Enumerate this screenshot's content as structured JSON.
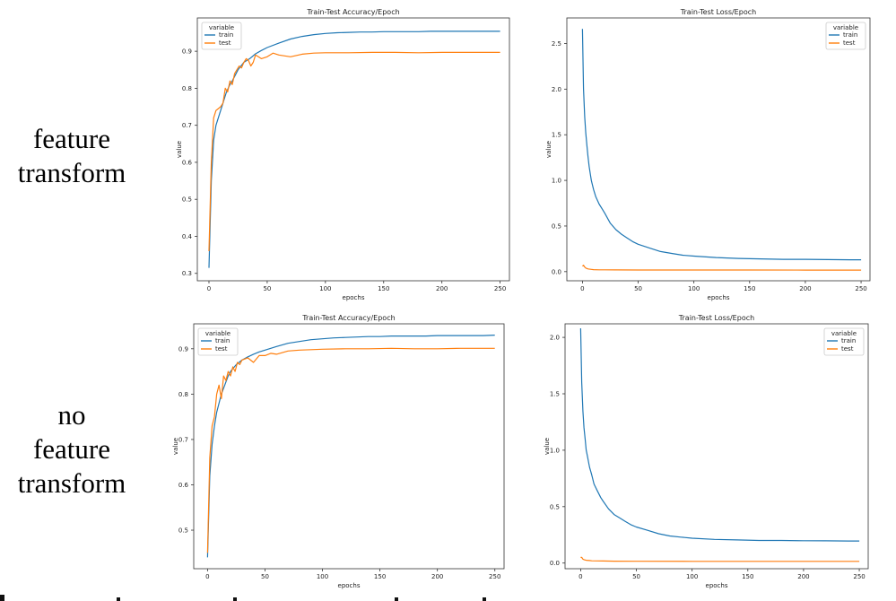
{
  "row_labels": [
    {
      "lines": [
        "feature",
        "transform"
      ]
    },
    {
      "lines": [
        "no",
        "feature",
        "transform"
      ]
    }
  ],
  "colors": {
    "train": "#1f77b4",
    "test": "#ff7f0e"
  },
  "chart_data": [
    {
      "type": "line",
      "title": "Train-Test Accuracy/Epoch",
      "xlabel": "epochs",
      "ylabel": "value",
      "xlim": [
        -10,
        258
      ],
      "ylim": [
        0.28,
        0.99
      ],
      "xticks": [
        0,
        50,
        100,
        150,
        200,
        250
      ],
      "yticks": [
        0.3,
        0.4,
        0.5,
        0.6,
        0.7,
        0.8,
        0.9
      ],
      "legend": {
        "title": "variable",
        "position": "top-left"
      },
      "series": [
        {
          "name": "train",
          "color": "#1f77b4",
          "x": [
            0,
            2,
            4,
            6,
            8,
            10,
            12,
            15,
            18,
            20,
            25,
            30,
            35,
            40,
            45,
            50,
            60,
            70,
            80,
            90,
            100,
            110,
            120,
            130,
            140,
            150,
            160,
            170,
            180,
            190,
            200,
            210,
            220,
            230,
            240,
            250
          ],
          "y": [
            0.315,
            0.55,
            0.66,
            0.7,
            0.72,
            0.74,
            0.76,
            0.79,
            0.81,
            0.82,
            0.85,
            0.87,
            0.88,
            0.893,
            0.902,
            0.91,
            0.922,
            0.933,
            0.94,
            0.945,
            0.948,
            0.95,
            0.951,
            0.952,
            0.952,
            0.953,
            0.953,
            0.953,
            0.953,
            0.954,
            0.954,
            0.954,
            0.954,
            0.954,
            0.954,
            0.954
          ]
        },
        {
          "name": "test",
          "color": "#ff7f0e",
          "x": [
            0,
            2,
            4,
            6,
            8,
            10,
            12,
            14,
            16,
            18,
            20,
            22,
            24,
            26,
            28,
            30,
            32,
            34,
            36,
            38,
            40,
            45,
            50,
            55,
            60,
            70,
            80,
            90,
            100,
            120,
            140,
            160,
            180,
            200,
            220,
            240,
            250
          ],
          "y": [
            0.36,
            0.6,
            0.72,
            0.74,
            0.745,
            0.75,
            0.76,
            0.8,
            0.79,
            0.82,
            0.81,
            0.84,
            0.85,
            0.86,
            0.855,
            0.87,
            0.88,
            0.875,
            0.86,
            0.87,
            0.89,
            0.88,
            0.885,
            0.895,
            0.89,
            0.885,
            0.892,
            0.895,
            0.896,
            0.896,
            0.897,
            0.897,
            0.896,
            0.897,
            0.897,
            0.897,
            0.897
          ]
        }
      ]
    },
    {
      "type": "line",
      "title": "Train-Test Loss/Epoch",
      "xlabel": "epochs",
      "ylabel": "value",
      "xlim": [
        -14,
        258
      ],
      "ylim": [
        -0.1,
        2.78
      ],
      "xticks": [
        0,
        50,
        100,
        150,
        200,
        250
      ],
      "yticks": [
        0.0,
        0.5,
        1.0,
        1.5,
        2.0,
        2.5
      ],
      "legend": {
        "title": "variable",
        "position": "top-right"
      },
      "series": [
        {
          "name": "train",
          "color": "#1f77b4",
          "x": [
            0,
            1,
            2,
            3,
            4,
            5,
            6,
            8,
            10,
            12,
            15,
            18,
            20,
            25,
            30,
            35,
            40,
            45,
            50,
            60,
            70,
            80,
            90,
            100,
            120,
            140,
            160,
            180,
            200,
            220,
            240,
            250
          ],
          "y": [
            2.66,
            2.0,
            1.7,
            1.52,
            1.38,
            1.26,
            1.15,
            1.0,
            0.9,
            0.82,
            0.74,
            0.68,
            0.64,
            0.53,
            0.46,
            0.41,
            0.37,
            0.33,
            0.3,
            0.26,
            0.22,
            0.2,
            0.18,
            0.17,
            0.155,
            0.145,
            0.14,
            0.135,
            0.135,
            0.132,
            0.13,
            0.13
          ]
        },
        {
          "name": "test",
          "color": "#ff7f0e",
          "x": [
            0,
            1,
            2,
            3,
            5,
            8,
            10,
            15,
            20,
            30,
            50,
            100,
            150,
            200,
            250
          ],
          "y": [
            0.06,
            0.07,
            0.05,
            0.04,
            0.03,
            0.025,
            0.022,
            0.02,
            0.02,
            0.019,
            0.018,
            0.018,
            0.018,
            0.017,
            0.017
          ]
        }
      ]
    },
    {
      "type": "line",
      "title": "Train-Test Accuracy/Epoch",
      "xlabel": "epochs",
      "ylabel": "value",
      "xlim": [
        -12,
        258
      ],
      "ylim": [
        0.415,
        0.955
      ],
      "xticks": [
        0,
        50,
        100,
        150,
        200,
        250
      ],
      "yticks": [
        0.5,
        0.6,
        0.7,
        0.8,
        0.9
      ],
      "legend": {
        "title": "variable",
        "position": "top-left"
      },
      "series": [
        {
          "name": "train",
          "color": "#1f77b4",
          "x": [
            0,
            2,
            4,
            6,
            8,
            10,
            12,
            15,
            18,
            20,
            25,
            30,
            35,
            40,
            45,
            50,
            60,
            70,
            80,
            90,
            100,
            110,
            120,
            130,
            140,
            150,
            160,
            170,
            180,
            190,
            200,
            210,
            220,
            230,
            240,
            250
          ],
          "y": [
            0.44,
            0.62,
            0.69,
            0.73,
            0.76,
            0.78,
            0.8,
            0.82,
            0.84,
            0.85,
            0.865,
            0.875,
            0.882,
            0.888,
            0.893,
            0.897,
            0.905,
            0.912,
            0.916,
            0.92,
            0.922,
            0.924,
            0.925,
            0.926,
            0.927,
            0.927,
            0.928,
            0.928,
            0.928,
            0.928,
            0.929,
            0.929,
            0.929,
            0.929,
            0.929,
            0.93
          ]
        },
        {
          "name": "test",
          "color": "#ff7f0e",
          "x": [
            0,
            2,
            4,
            6,
            8,
            10,
            12,
            14,
            16,
            18,
            20,
            22,
            24,
            26,
            28,
            30,
            35,
            40,
            45,
            50,
            55,
            60,
            70,
            80,
            90,
            100,
            120,
            140,
            160,
            180,
            200,
            220,
            240,
            250
          ],
          "y": [
            0.45,
            0.66,
            0.73,
            0.75,
            0.8,
            0.82,
            0.79,
            0.84,
            0.83,
            0.85,
            0.84,
            0.86,
            0.85,
            0.87,
            0.865,
            0.875,
            0.88,
            0.87,
            0.885,
            0.885,
            0.89,
            0.888,
            0.895,
            0.897,
            0.898,
            0.899,
            0.9,
            0.9,
            0.901,
            0.9,
            0.9,
            0.901,
            0.901,
            0.901
          ]
        }
      ]
    },
    {
      "type": "line",
      "title": "Train-Test Loss/Epoch",
      "xlabel": "epochs",
      "ylabel": "value",
      "xlim": [
        -14,
        258
      ],
      "ylim": [
        -0.05,
        2.12
      ],
      "xticks": [
        0,
        50,
        100,
        150,
        200,
        250
      ],
      "yticks": [
        0.0,
        0.5,
        1.0,
        1.5,
        2.0
      ],
      "legend": {
        "title": "variable",
        "position": "top-right"
      },
      "series": [
        {
          "name": "train",
          "color": "#1f77b4",
          "x": [
            0,
            1,
            2,
            3,
            4,
            5,
            6,
            8,
            10,
            12,
            15,
            18,
            20,
            25,
            30,
            35,
            40,
            45,
            50,
            60,
            70,
            80,
            90,
            100,
            120,
            140,
            160,
            180,
            200,
            220,
            240,
            250
          ],
          "y": [
            2.08,
            1.6,
            1.35,
            1.2,
            1.1,
            1.0,
            0.95,
            0.85,
            0.78,
            0.7,
            0.64,
            0.58,
            0.55,
            0.48,
            0.43,
            0.4,
            0.37,
            0.34,
            0.32,
            0.29,
            0.26,
            0.24,
            0.23,
            0.22,
            0.21,
            0.205,
            0.2,
            0.2,
            0.198,
            0.197,
            0.196,
            0.196
          ]
        },
        {
          "name": "test",
          "color": "#ff7f0e",
          "x": [
            0,
            1,
            2,
            3,
            5,
            8,
            10,
            15,
            20,
            30,
            50,
            100,
            150,
            200,
            250
          ],
          "y": [
            0.05,
            0.05,
            0.035,
            0.03,
            0.025,
            0.022,
            0.02,
            0.019,
            0.018,
            0.017,
            0.016,
            0.015,
            0.015,
            0.015,
            0.015
          ]
        }
      ]
    }
  ]
}
